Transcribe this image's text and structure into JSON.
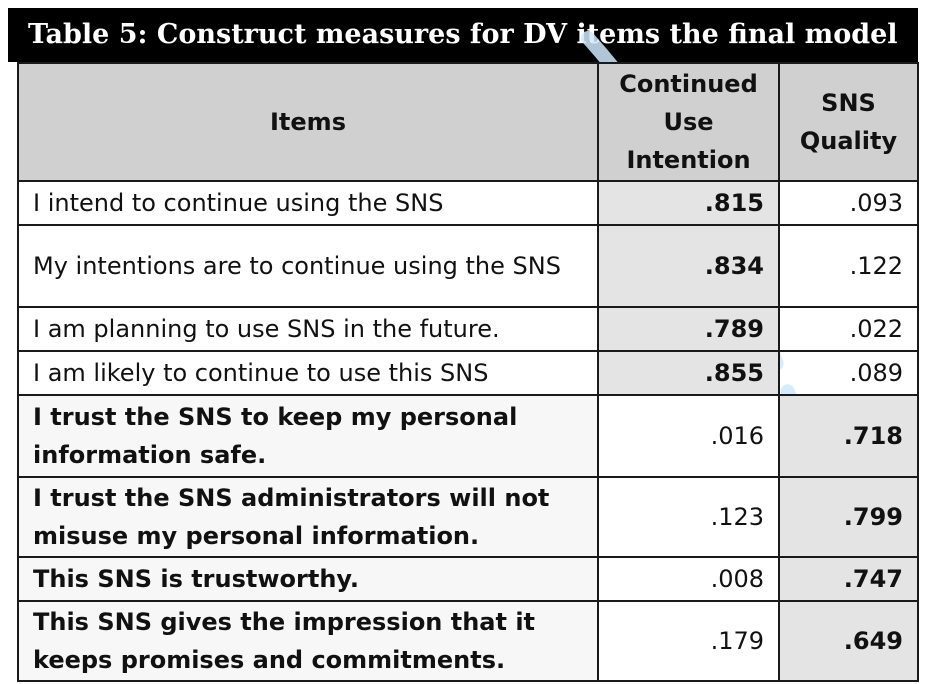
{
  "title": "Table 5: Construct measures for DV items the final model",
  "table": {
    "headers": [
      "Items",
      "Continued Use Intention",
      "SNS Quality"
    ],
    "rows": [
      {
        "item": "I intend to continue using the SNS",
        "cui": ".815",
        "quality": ".093",
        "group": "cui"
      },
      {
        "item": "My intentions are to continue using the SNS",
        "cui": ".834",
        "quality": ".122",
        "group": "cui"
      },
      {
        "item": "I am planning to use SNS in the future.",
        "cui": ".789",
        "quality": ".022",
        "group": "cui"
      },
      {
        "item": "I am likely to continue to use this SNS",
        "cui": ".855",
        "quality": ".089",
        "group": "cui"
      },
      {
        "item": "I trust the SNS to keep my personal information safe.",
        "cui": ".016",
        "quality": ".718",
        "group": "quality"
      },
      {
        "item": "I trust the SNS administrators will not misuse my personal information.",
        "cui": ".123",
        "quality": ".799",
        "group": "quality"
      },
      {
        "item": "This SNS is trustworthy.",
        "cui": ".008",
        "quality": ".747",
        "group": "quality"
      },
      {
        "item": "This SNS gives the impression that it keeps promises and commitments.",
        "cui": ".179",
        "quality": ".649",
        "group": "quality"
      }
    ]
  },
  "colors": {
    "title_bg": "#000000",
    "header_bg": "#d0d0d0",
    "shade_bg": "#e4e4e4",
    "watermark": "#cfe8fb"
  }
}
